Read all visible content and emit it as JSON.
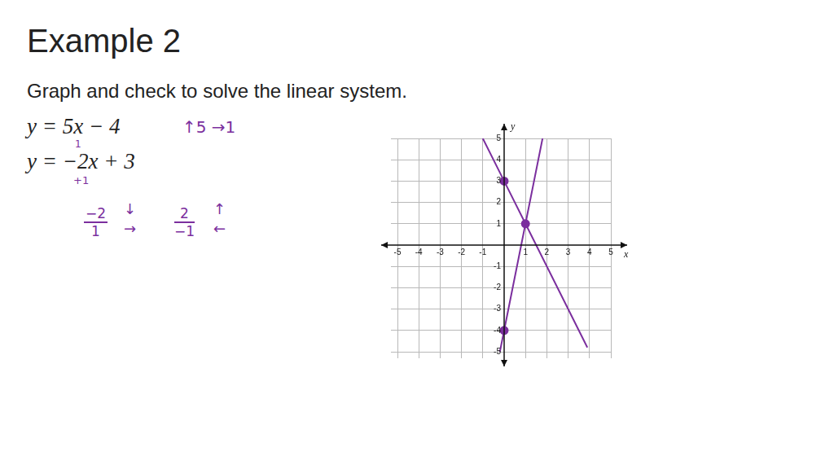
{
  "slide": {
    "heading": "Example 2",
    "instruction": "Graph and check to solve the linear system.",
    "equations": [
      "y = 5x − 4",
      "y = −2x + 3"
    ],
    "notes": [
      "↑5 →1",
      "1",
      "+1"
    ],
    "fractions": [
      {
        "numerator": "−2",
        "denominator": "1",
        "arrows": [
          "↓",
          "→"
        ]
      },
      {
        "numerator": "2",
        "denominator": "−1",
        "arrows": [
          "↑",
          "←"
        ]
      }
    ]
  },
  "chart_data": {
    "type": "line",
    "xlabel": "x",
    "ylabel": "y",
    "xlim": [
      -5,
      5
    ],
    "ylim": [
      -5,
      5
    ],
    "xticks": [
      -5,
      -4,
      -3,
      -2,
      -1,
      1,
      2,
      3,
      4,
      5
    ],
    "yticks": [
      -5,
      -4,
      -3,
      -2,
      -1,
      1,
      2,
      3,
      4,
      5
    ],
    "grid": true,
    "series": [
      {
        "x": [
          -0.2,
          0,
          1,
          1.8
        ],
        "values": [
          -5,
          -4,
          1,
          5
        ],
        "color": "#7b2f9e",
        "marker": "none"
      },
      {
        "x": [
          -1,
          0,
          1,
          3.9
        ],
        "values": [
          5,
          3,
          1,
          -4.8
        ],
        "color": "#7b2f9e",
        "marker": "none"
      },
      {
        "type": "scatter",
        "x": [
          0,
          0,
          1
        ],
        "values": [
          3,
          -4,
          1
        ],
        "color": "#7b2f9e",
        "marker": "circle"
      }
    ]
  }
}
